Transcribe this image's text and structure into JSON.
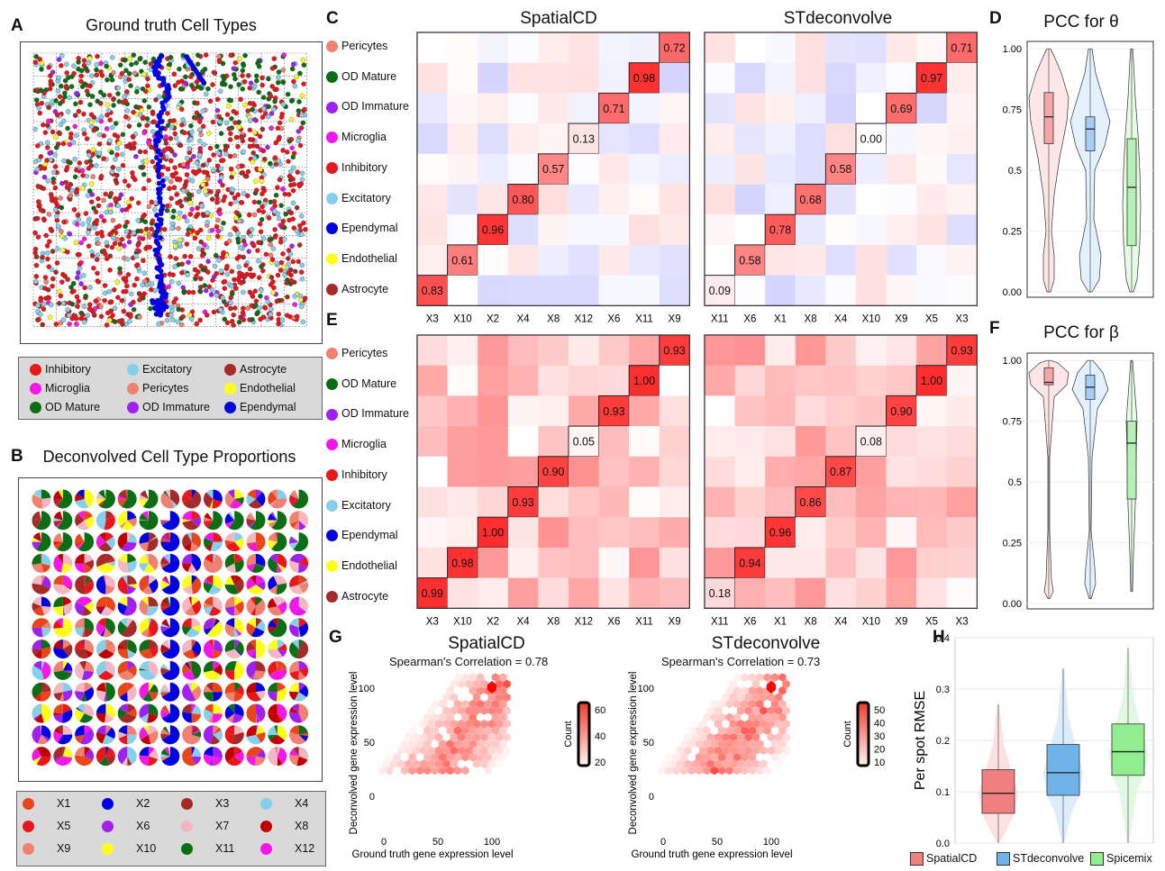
{
  "cell_types": [
    {
      "name": "Inhibitory",
      "color": "#e8171c"
    },
    {
      "name": "Excitatory",
      "color": "#87ceeb"
    },
    {
      "name": "Astrocyte",
      "color": "#a52a2a"
    },
    {
      "name": "Microglia",
      "color": "#f516e8"
    },
    {
      "name": "Pericytes",
      "color": "#f08070"
    },
    {
      "name": "Endothelial",
      "color": "#fefe1a"
    },
    {
      "name": "OD Mature",
      "color": "#0c6e14"
    },
    {
      "name": "OD Immature",
      "color": "#a020f0"
    },
    {
      "name": "Ependymal",
      "color": "#0000e0"
    }
  ],
  "panel_labels": {
    "A": "A",
    "B": "B",
    "C": "C",
    "D": "D",
    "E": "E",
    "F": "F",
    "G": "G",
    "H": "H"
  },
  "titles": {
    "a": "Ground truth Cell Types",
    "b": "Deconvolved Cell Type Proportions",
    "c_left": "SpatialCD",
    "c_right": "STdeconvolve",
    "d": "PCC for θ",
    "f": "PCC for β",
    "g_left": "SpatialCD",
    "g_right": "STdeconvolve",
    "g_left_sub": "Spearman's   Correlation = 0.78",
    "g_right_sub": "Spearman's Correlation = 0.73"
  },
  "factors": [
    {
      "name": "X1",
      "color": "#e8461a"
    },
    {
      "name": "X2",
      "color": "#0000e0"
    },
    {
      "name": "X3",
      "color": "#a52a2a"
    },
    {
      "name": "X4",
      "color": "#87ceeb"
    },
    {
      "name": "X5",
      "color": "#e8171c"
    },
    {
      "name": "X6",
      "color": "#a020f0"
    },
    {
      "name": "X7",
      "color": "#f4b6c2"
    },
    {
      "name": "X8",
      "color": "#c00000"
    },
    {
      "name": "X9",
      "color": "#f08070"
    },
    {
      "name": "X10",
      "color": "#fefe1a"
    },
    {
      "name": "X11",
      "color": "#0c6e14"
    },
    {
      "name": "X12",
      "color": "#f516e8"
    }
  ],
  "heatmap": {
    "row_labels": [
      "Pericytes",
      "OD Mature",
      "OD Immature",
      "Microglia",
      "Inhibitory",
      "Excitatory",
      "Ependymal",
      "Endothelial",
      "Astrocyte"
    ],
    "row_colors": [
      "#f08070",
      "#0c6e14",
      "#a020f0",
      "#f516e8",
      "#e8171c",
      "#87ceeb",
      "#0000e0",
      "#fefe1a",
      "#a52a2a"
    ],
    "c_left_cols": [
      "X3",
      "X10",
      "X2",
      "X4",
      "X8",
      "X12",
      "X6",
      "X11",
      "X9"
    ],
    "c_right_cols": [
      "X11",
      "X6",
      "X1",
      "X8",
      "X4",
      "X10",
      "X9",
      "X5",
      "X3"
    ],
    "c_left_diag": [
      "0.72",
      "0.98",
      "0.71",
      "0.13",
      "0.57",
      "0.80",
      "0.96",
      "0.61",
      "0.83"
    ],
    "c_right_diag": [
      "0.71",
      "0.97",
      "0.69",
      "0.00",
      "0.58",
      "0.68",
      "0.78",
      "0.58",
      "0.09"
    ],
    "e_left_diag": [
      "0.93",
      "1.00",
      "0.93",
      "0.05",
      "0.90",
      "0.93",
      "1.00",
      "0.98",
      "0.99"
    ],
    "e_right_diag": [
      "0.93",
      "1.00",
      "0.90",
      "0.08",
      "0.87",
      "0.86",
      "0.96",
      "0.94",
      "0.18"
    ]
  },
  "violin_d": {
    "ticks": [
      "1.00",
      "0.75",
      "0.5",
      "0.25",
      "0.00"
    ],
    "medians": [
      0.72,
      0.67,
      0.43
    ],
    "q1": [
      0.61,
      0.58,
      0.19
    ],
    "q3": [
      0.82,
      0.72,
      0.63
    ]
  },
  "violin_f": {
    "ticks": [
      "1.00",
      "0.75",
      "0.5",
      "0.25",
      "0.00"
    ],
    "medians": [
      0.91,
      0.89,
      0.66
    ],
    "q1": [
      0.9,
      0.84,
      0.43
    ],
    "q3": [
      0.97,
      0.94,
      0.75
    ]
  },
  "hex_g": {
    "ylabel": "Deconvolved gene expression level",
    "xlabel": "Ground truth gene expression level",
    "x_ticks": [
      "0",
      "50",
      "100"
    ],
    "y_ticks": [
      "100",
      "50",
      "0"
    ],
    "legend_title": "Count",
    "left_scale": [
      "60",
      "40",
      "20"
    ],
    "right_scale": [
      "50",
      "40",
      "30",
      "20",
      "10"
    ]
  },
  "chart_data": [
    {
      "type": "box",
      "title": "Per spot RMSE",
      "ylabel": "Per spot RMSE",
      "ylim": [
        0,
        0.4
      ],
      "y_ticks": [
        "0.4",
        "0.3",
        "0.2",
        "0.1",
        "0.0"
      ],
      "series": [
        {
          "name": "SpatialCD",
          "color": "#f08080",
          "median": 0.097,
          "q1": 0.058,
          "q3": 0.143
        },
        {
          "name": "STdeconvolve",
          "color": "#6fb3e8",
          "median": 0.137,
          "q1": 0.093,
          "q3": 0.192
        },
        {
          "name": "Spicemix",
          "color": "#90ee90",
          "median": 0.178,
          "q1": 0.132,
          "q3": 0.232
        }
      ]
    }
  ],
  "legend_h": [
    "SpatialCD",
    "STdeconvolve",
    "Spicemix"
  ]
}
